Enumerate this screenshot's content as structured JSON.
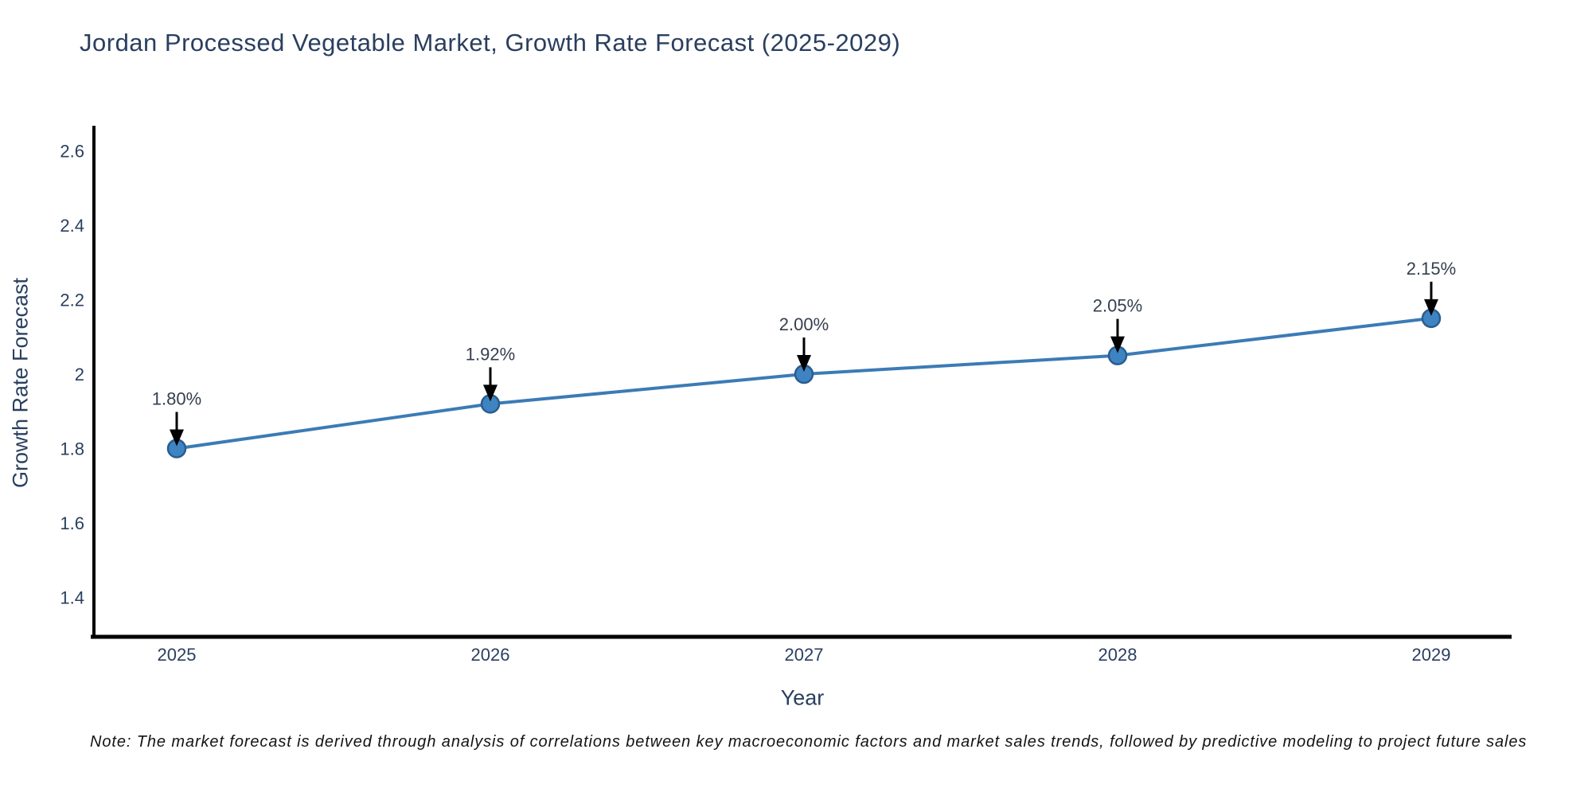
{
  "title": "Jordan Processed Vegetable Market, Growth Rate Forecast (2025-2029)",
  "note": "Note: The market forecast is derived through analysis of correlations between key macroeconomic factors and market sales trends, followed by predictive modeling to project future sales",
  "chart_data": {
    "type": "line",
    "title": "Jordan Processed Vegetable Market, Growth Rate Forecast (2025-2029)",
    "xlabel": "Year",
    "ylabel": "Growth Rate Forecast",
    "x": [
      2025,
      2026,
      2027,
      2028,
      2029
    ],
    "y": [
      1.8,
      1.92,
      2.0,
      2.05,
      2.15
    ],
    "point_labels": [
      "1.80%",
      "1.92%",
      "2.00%",
      "2.05%",
      "2.15%"
    ],
    "x_tick_labels": [
      "2025",
      "2026",
      "2027",
      "2028",
      "2029"
    ],
    "y_tick_values": [
      1.4,
      1.6,
      1.8,
      2.0,
      2.2,
      2.4,
      2.6
    ],
    "y_tick_labels": [
      "1.4",
      "1.6",
      "1.8",
      "2",
      "2.2",
      "2.4",
      "2.6"
    ],
    "ylim": [
      1.29,
      2.66
    ],
    "grid": false,
    "legend_position": "none",
    "annotation_style": "value label with downward black arrow onto each marker",
    "colors": {
      "line": "#3c7bb5",
      "marker_fill": "#3f84c2",
      "marker_edge": "#2a5d8e",
      "axis": "#000000",
      "tick_text": "#2a3f5f",
      "annotation_text": "#353f4f",
      "arrow": "#000000",
      "background": "#ffffff"
    }
  }
}
